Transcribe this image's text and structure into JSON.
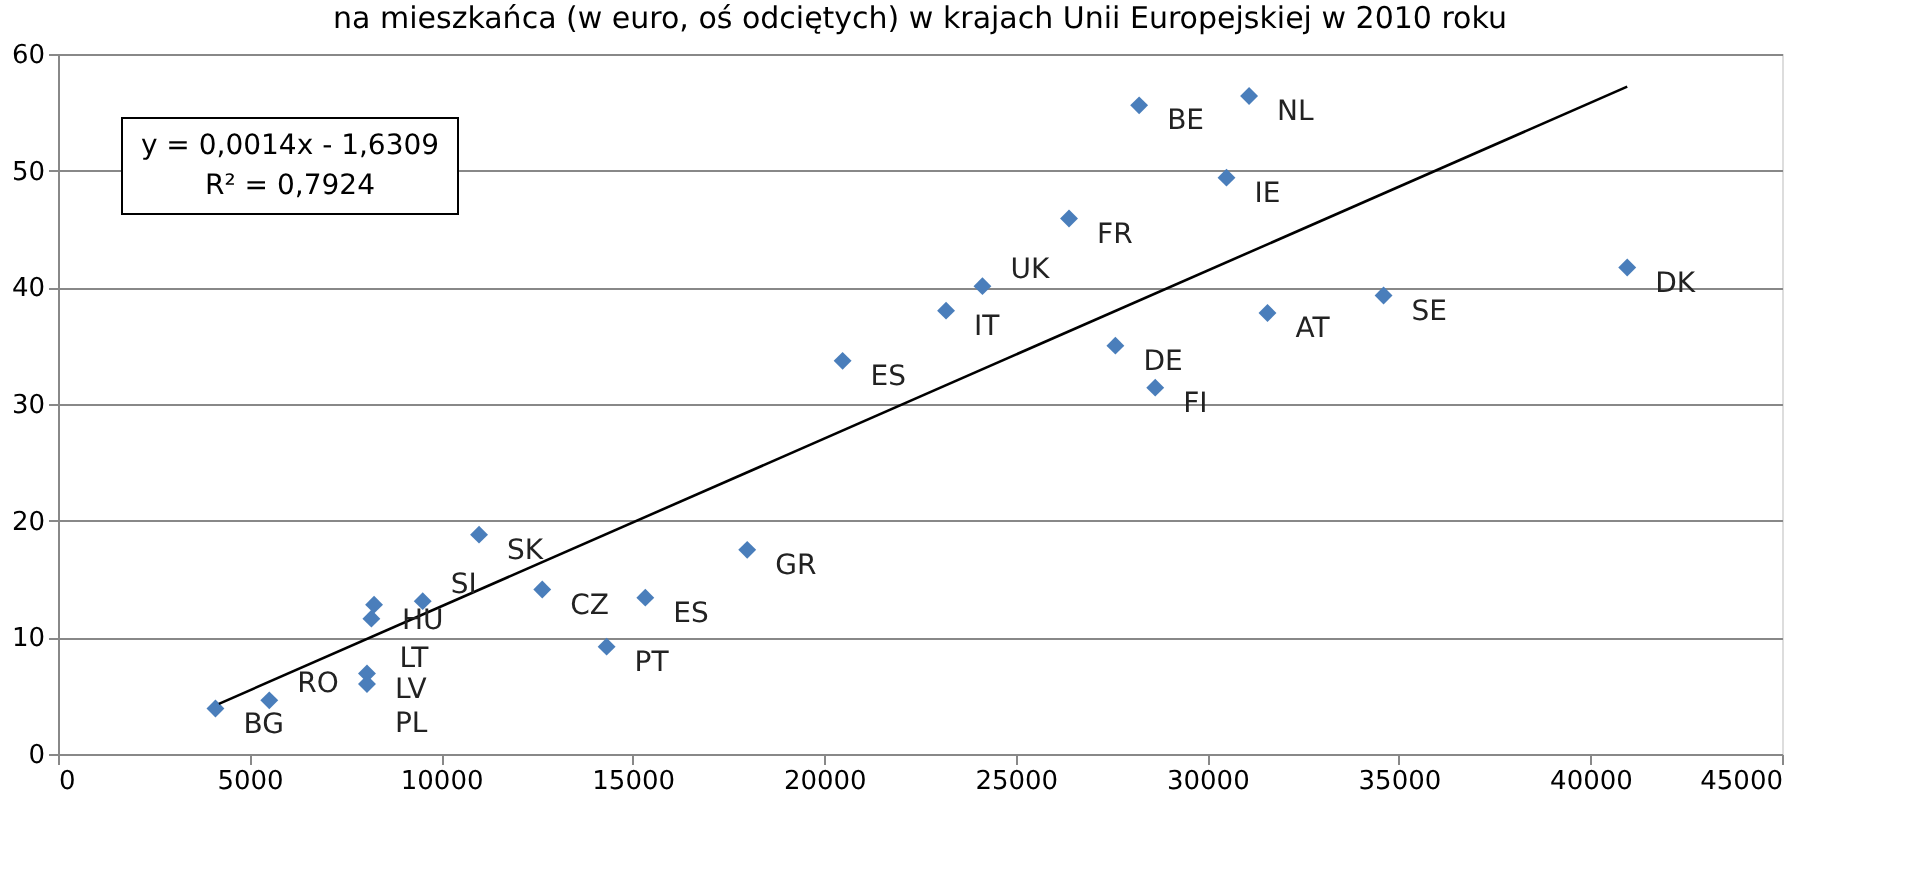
{
  "chart_data": {
    "type": "scatter",
    "title": "na mieszkańca (w euro, oś odciętych) w krajach Unii Europejskiej w 2010 roku",
    "xlim": [
      0,
      45000
    ],
    "xticks": [
      0,
      5000,
      10000,
      15000,
      20000,
      25000,
      30000,
      35000,
      40000,
      45000
    ],
    "ylim": [
      0,
      60
    ],
    "yticks": [
      0,
      10,
      20,
      30,
      40,
      50,
      60
    ],
    "grid": "y",
    "legend": false,
    "marker": "diamond",
    "series": [
      {
        "color": "#4a7ebb",
        "x": [
          4110,
          5515,
          8065,
          8065,
          8250,
          8180,
          9520,
          10990,
          12640,
          15330,
          14320,
          17990,
          20480,
          23180,
          24130,
          26390,
          28220,
          31090,
          30500,
          27600,
          28640,
          31570,
          34600,
          40960
        ],
        "values": [
          3.9,
          4.6,
          6.9,
          6.0,
          12.8,
          11.6,
          13.1,
          18.8,
          14.1,
          13.4,
          9.2,
          17.5,
          33.7,
          38.0,
          40.1,
          45.9,
          55.6,
          56.4,
          49.4,
          35.0,
          31.4,
          37.8,
          39.3,
          41.7
        ]
      },
      {
        "type": "line",
        "marker": "none",
        "color": "#000000",
        "x": [
          4200,
          40960
        ],
        "values": [
          4.3,
          57.2
        ]
      }
    ],
    "annotations": [
      {
        "text": "BG",
        "x": 4110,
        "y": 3.9
      },
      {
        "text": "RO",
        "x": 5515,
        "y": 4.6
      },
      {
        "text": "LV",
        "x": 8065,
        "y": 6.9
      },
      {
        "text": "PL",
        "x": 8065,
        "y": 6.0
      },
      {
        "text": "HU",
        "x": 8250,
        "y": 12.8
      },
      {
        "text": "LT",
        "x": 8180,
        "y": 11.6
      },
      {
        "text": "SI",
        "x": 9520,
        "y": 13.1
      },
      {
        "text": "SK",
        "x": 10990,
        "y": 18.8
      },
      {
        "text": "CZ",
        "x": 12640,
        "y": 14.1
      },
      {
        "text": "ES",
        "x": 15330,
        "y": 13.4
      },
      {
        "text": "PT",
        "x": 14320,
        "y": 9.2
      },
      {
        "text": "GR",
        "x": 17990,
        "y": 17.5
      },
      {
        "text": "ES",
        "x": 20480,
        "y": 33.7
      },
      {
        "text": "IT",
        "x": 23180,
        "y": 38.0
      },
      {
        "text": "UK",
        "x": 24130,
        "y": 40.1
      },
      {
        "text": "FR",
        "x": 26390,
        "y": 45.9
      },
      {
        "text": "BE",
        "x": 28220,
        "y": 55.6
      },
      {
        "text": "NL",
        "x": 31090,
        "y": 56.4
      },
      {
        "text": "IE",
        "x": 30500,
        "y": 49.4
      },
      {
        "text": "DE",
        "x": 27600,
        "y": 35.0
      },
      {
        "text": "FI",
        "x": 28640,
        "y": 31.4
      },
      {
        "text": "AT",
        "x": 31570,
        "y": 37.8
      },
      {
        "text": "SE",
        "x": 34600,
        "y": 39.3
      },
      {
        "text": "DK",
        "x": 40960,
        "y": 41.7
      },
      "y = 0,0014x - 1,6309",
      "R² = 0,7924"
    ]
  }
}
